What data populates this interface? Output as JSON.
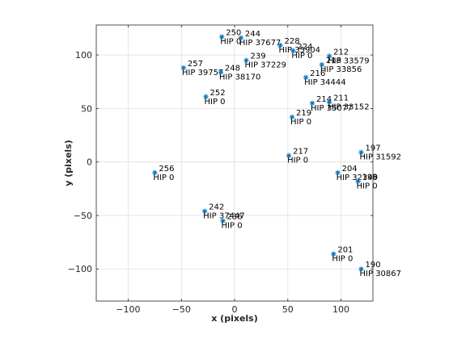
{
  "chart_data": {
    "type": "scatter",
    "xlabel": "x (pixels)",
    "ylabel": "y (pixels)",
    "xlim": [
      -130,
      130
    ],
    "ylim": [
      -130,
      128
    ],
    "xticks": [
      -100,
      -50,
      0,
      50,
      100
    ],
    "yticks": [
      -100,
      -50,
      0,
      50,
      100
    ],
    "xtick_labels": [
      "−100",
      "−50",
      "0",
      "50",
      "100"
    ],
    "ytick_labels": [
      "−100",
      "−50",
      "0",
      "50",
      "100"
    ],
    "grid": true,
    "marker_color": "#0072BD",
    "points": [
      {
        "x": -12,
        "y": 117,
        "id": "250",
        "hip": "HIP 0"
      },
      {
        "x": 6,
        "y": 116,
        "id": "244",
        "hip": "HIP 37677"
      },
      {
        "x": 43,
        "y": 109,
        "id": "228",
        "hip": "HIP 35904"
      },
      {
        "x": 55,
        "y": 104,
        "id": "224",
        "hip": "HIP 0"
      },
      {
        "x": 89,
        "y": 99,
        "id": "212",
        "hip": "HIP 33579"
      },
      {
        "x": 11,
        "y": 95,
        "id": "239",
        "hip": "HIP 37229"
      },
      {
        "x": 82,
        "y": 91,
        "id": "218",
        "hip": "HIP 33856"
      },
      {
        "x": -48,
        "y": 88,
        "id": "257",
        "hip": "HIP 39757"
      },
      {
        "x": -13,
        "y": 84,
        "id": "248",
        "hip": "HIP 38170"
      },
      {
        "x": 67,
        "y": 79,
        "id": "216",
        "hip": "HIP 34444"
      },
      {
        "x": -27,
        "y": 61,
        "id": "252",
        "hip": "HIP 0"
      },
      {
        "x": 73,
        "y": 55,
        "id": "214",
        "hip": "HIP 35077"
      },
      {
        "x": 89,
        "y": 56,
        "id": "211",
        "hip": "HIP 33152"
      },
      {
        "x": 54,
        "y": 42,
        "id": "219",
        "hip": "HIP 0"
      },
      {
        "x": 119,
        "y": 9,
        "id": "197",
        "hip": "HIP 31592"
      },
      {
        "x": 51,
        "y": 6,
        "id": "217",
        "hip": "HIP 0"
      },
      {
        "x": -75,
        "y": -10,
        "id": "256",
        "hip": "HIP 0"
      },
      {
        "x": 97,
        "y": -10,
        "id": "204",
        "hip": "HIP 32349"
      },
      {
        "x": 116,
        "y": -18,
        "id": "198",
        "hip": "HIP 0"
      },
      {
        "x": -28,
        "y": -46,
        "id": "242",
        "hip": "HIP 37447"
      },
      {
        "x": -11,
        "y": -55,
        "id": "236",
        "hip": "HIP 0"
      },
      {
        "x": 93,
        "y": -86,
        "id": "201",
        "hip": "HIP 0"
      },
      {
        "x": 119,
        "y": -100,
        "id": "190",
        "hip": "HIP 30867"
      }
    ]
  }
}
